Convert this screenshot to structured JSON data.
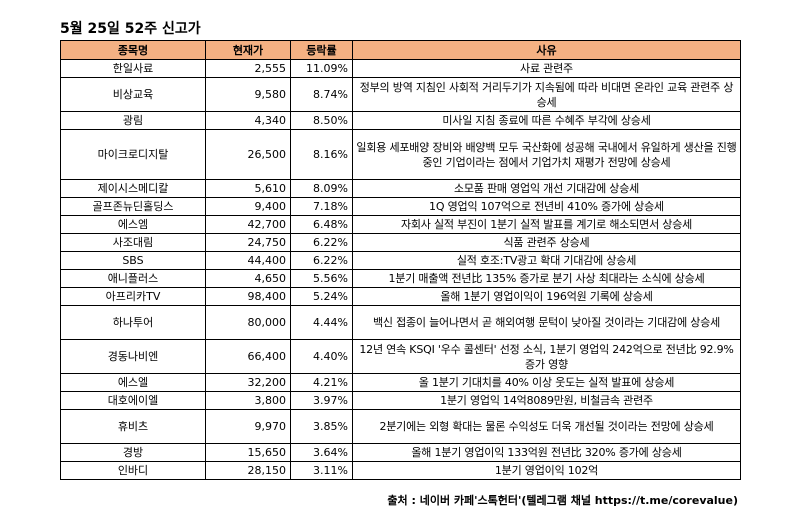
{
  "title": "5월 25일 52주 신고가",
  "headers": [
    "종목명",
    "현재가",
    "등락률",
    "사유"
  ],
  "rows": [
    {
      "name": "한일사료",
      "price": "2,555",
      "change": "11.09%",
      "reason": "사료 관련주",
      "h": 18
    },
    {
      "name": "비상교육",
      "price": "9,580",
      "change": "8.74%",
      "reason": "정부의 방역 지침인 사회적 거리두기가 지속됨에 따라 비대면 온라인 교육 관련주 상승세",
      "h": 34
    },
    {
      "name": "광림",
      "price": "4,340",
      "change": "8.50%",
      "reason": "미사일 지침 종료에 따른 수혜주 부각에 상승세",
      "h": 18
    },
    {
      "name": "마이크로디지탈",
      "price": "26,500",
      "change": "8.16%",
      "reason": "일회용 세포배양 장비와 배양백 모두 국산화에 성공해 국내에서 유일하게 생산을 진행 중인 기업이라는 점에서 기업가치 재평가 전망에 상승세",
      "h": 50
    },
    {
      "name": "제이시스메디칼",
      "price": "5,610",
      "change": "8.09%",
      "reason": "소모품 판매 영업익 개선 기대감에 상승세",
      "h": 18
    },
    {
      "name": "골프존뉴딘홀딩스",
      "price": "9,400",
      "change": "7.18%",
      "reason": "1Q 영업익 107억으로 전년비 410% 증가에 상승세",
      "h": 18
    },
    {
      "name": "에스엠",
      "price": "42,700",
      "change": "6.48%",
      "reason": "자회사 실적 부진이 1분기 실적 발표를 계기로 해소되면서 상승세",
      "h": 18
    },
    {
      "name": "사조대림",
      "price": "24,750",
      "change": "6.22%",
      "reason": "식품 관련주 상승세",
      "h": 18
    },
    {
      "name": "SBS",
      "price": "44,400",
      "change": "6.22%",
      "reason": "실적 호조:TV광고 확대 기대감에 상승세",
      "h": 18
    },
    {
      "name": "애니플러스",
      "price": "4,650",
      "change": "5.56%",
      "reason": "1분기 매출액 전년比 135% 증가로 분기 사상 최대라는 소식에 상승세",
      "h": 18
    },
    {
      "name": "아프리카TV",
      "price": "98,400",
      "change": "5.24%",
      "reason": "올해 1분기 영업이익이 196억원 기록에 상승세",
      "h": 18
    },
    {
      "name": "하나투어",
      "price": "80,000",
      "change": "4.44%",
      "reason": "백신 접종이 늘어나면서 곧 해외여행 문턱이 낮아질 것이라는 기대감에 상승세",
      "h": 34
    },
    {
      "name": "경동나비엔",
      "price": "66,400",
      "change": "4.40%",
      "reason": "12년 연속 KSQI '우수 콜센터' 선정 소식, 1분기 영업익 242억으로 전년比 92.9% 증가 영향",
      "h": 34
    },
    {
      "name": "에스엘",
      "price": "32,200",
      "change": "4.21%",
      "reason": "올 1분기 기대치를 40% 이상 웃도는 실적 발표에 상승세",
      "h": 18
    },
    {
      "name": "대호에이엘",
      "price": "3,800",
      "change": "3.97%",
      "reason": "1분기 영업익 14억8089만원, 비철금속 관련주",
      "h": 18
    },
    {
      "name": "휴비츠",
      "price": "9,970",
      "change": "3.85%",
      "reason": "2분기에는 외형 확대는 물론 수익성도 더욱 개선될 것이라는 전망에 상승세",
      "h": 34
    },
    {
      "name": "경방",
      "price": "15,650",
      "change": "3.64%",
      "reason": "올해 1분기 영업이익 133억원 전년比 320% 증가에 상승세",
      "h": 18
    },
    {
      "name": "인바디",
      "price": "28,150",
      "change": "3.11%",
      "reason": "1분기 영업이익 102억",
      "h": 18
    }
  ],
  "footer": "출처 : 네이버 카페'스톡헌터'(텔레그램 채널 https://t.me/corevalue)"
}
